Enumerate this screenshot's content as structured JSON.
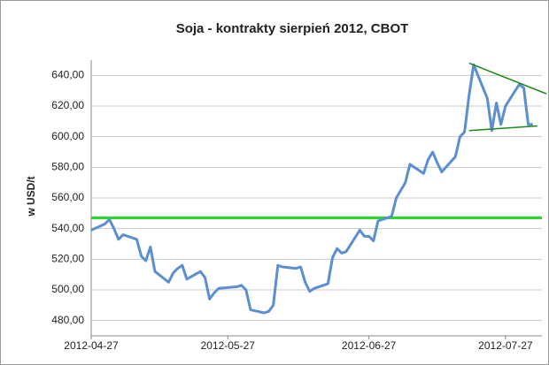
{
  "chart_data": {
    "type": "line",
    "title": "Soja - kontrakty sierpień 2012, CBOT",
    "y_label": "w USD/t",
    "x": [
      "2012-04-27",
      "2012-04-30",
      "2012-05-01",
      "2012-05-02",
      "2012-05-03",
      "2012-05-04",
      "2012-05-07",
      "2012-05-08",
      "2012-05-09",
      "2012-05-10",
      "2012-05-11",
      "2012-05-14",
      "2012-05-15",
      "2012-05-16",
      "2012-05-17",
      "2012-05-18",
      "2012-05-21",
      "2012-05-22",
      "2012-05-23",
      "2012-05-24",
      "2012-05-25",
      "2012-05-29",
      "2012-05-30",
      "2012-05-31",
      "2012-06-01",
      "2012-06-04",
      "2012-06-05",
      "2012-06-06",
      "2012-06-07",
      "2012-06-08",
      "2012-06-11",
      "2012-06-12",
      "2012-06-13",
      "2012-06-14",
      "2012-06-15",
      "2012-06-18",
      "2012-06-19",
      "2012-06-20",
      "2012-06-21",
      "2012-06-22",
      "2012-06-25",
      "2012-06-26",
      "2012-06-27",
      "2012-06-28",
      "2012-06-29",
      "2012-07-02",
      "2012-07-03",
      "2012-07-05",
      "2012-07-06",
      "2012-07-09",
      "2012-07-10",
      "2012-07-11",
      "2012-07-12",
      "2012-07-13",
      "2012-07-16",
      "2012-07-17",
      "2012-07-18",
      "2012-07-19",
      "2012-07-20",
      "2012-07-23",
      "2012-07-24",
      "2012-07-25",
      "2012-07-26",
      "2012-07-27",
      "2012-07-30",
      "2012-07-31",
      "2012-08-01",
      "2012-08-02"
    ],
    "series": [
      {
        "color": "#5b8fd0",
        "values": [
          539,
          543,
          546,
          540,
          533,
          536,
          533,
          522,
          519,
          528,
          512,
          505,
          511,
          514,
          516,
          507,
          512,
          508,
          494,
          498,
          501,
          502,
          503,
          500,
          487,
          485,
          486,
          490,
          516,
          515,
          514,
          515,
          505,
          499,
          501,
          504,
          521,
          527,
          524,
          525,
          539,
          535,
          535,
          532,
          545,
          548,
          560,
          570,
          582,
          576,
          585,
          590,
          583,
          577,
          587,
          600,
          603,
          627,
          647,
          625,
          604,
          622,
          608,
          620,
          634,
          632,
          608,
          608
        ]
      }
    ],
    "reference_lines": [
      {
        "color": "#22dd22",
        "value": 547
      }
    ],
    "trend_lines": [
      {
        "color": "#1a8a1a",
        "x": [
          "2012-07-19",
          "2012-08-05"
        ],
        "values": [
          648,
          628
        ]
      },
      {
        "color": "#1a8a1a",
        "x": [
          "2012-07-19",
          "2012-08-03"
        ],
        "values": [
          604,
          607
        ]
      }
    ],
    "xlim": [
      "2012-04-27",
      "2012-08-04"
    ],
    "xticks": [
      "2012-04-27",
      "2012-05-27",
      "2012-06-27",
      "2012-07-27"
    ],
    "ylim": [
      470,
      650
    ],
    "yticks": [
      {
        "value": 480,
        "label": "480,00"
      },
      {
        "value": 500,
        "label": "500,00"
      },
      {
        "value": 520,
        "label": "520,00"
      },
      {
        "value": 540,
        "label": "540,00"
      },
      {
        "value": 560,
        "label": "560,00"
      },
      {
        "value": 580,
        "label": "580,00"
      },
      {
        "value": 600,
        "label": "600,00"
      },
      {
        "value": 620,
        "label": "620,00"
      },
      {
        "value": 640,
        "label": "640,00"
      }
    ],
    "grid": true
  }
}
